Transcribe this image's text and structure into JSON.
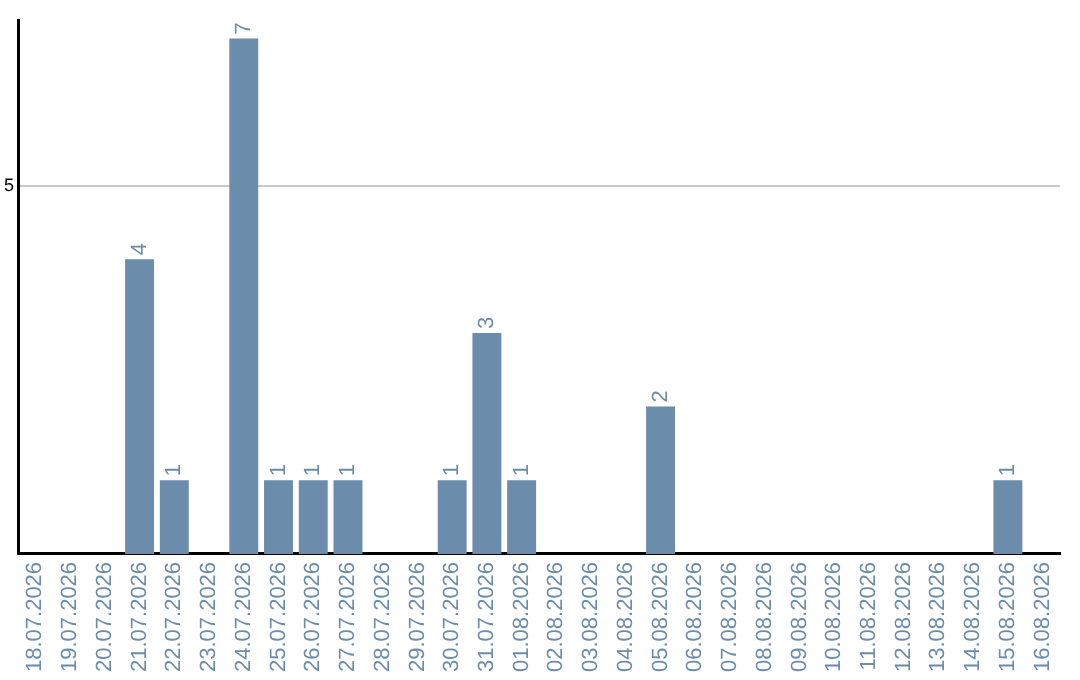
{
  "chart_data": {
    "type": "bar",
    "categories": [
      "18.07.2026",
      "19.07.2026",
      "20.07.2026",
      "21.07.2026",
      "22.07.2026",
      "23.07.2026",
      "24.07.2026",
      "25.07.2026",
      "26.07.2026",
      "27.07.2026",
      "28.07.2026",
      "29.07.2026",
      "30.07.2026",
      "31.07.2026",
      "01.08.2026",
      "02.08.2026",
      "03.08.2026",
      "04.08.2026",
      "05.08.2026",
      "06.08.2026",
      "07.08.2026",
      "08.08.2026",
      "09.08.2026",
      "10.08.2026",
      "11.08.2026",
      "12.08.2026",
      "13.08.2026",
      "14.08.2026",
      "15.08.2026",
      "16.08.2026"
    ],
    "values": [
      0,
      0,
      0,
      4,
      1,
      0,
      7,
      1,
      1,
      1,
      0,
      0,
      1,
      3,
      1,
      0,
      0,
      0,
      2,
      0,
      0,
      0,
      0,
      0,
      0,
      0,
      0,
      0,
      1,
      0
    ],
    "value_labels": [
      null,
      null,
      null,
      "4",
      "1",
      null,
      "7",
      "1",
      "1",
      "1",
      null,
      null,
      "1",
      "3",
      "1",
      null,
      null,
      null,
      "2",
      null,
      null,
      null,
      null,
      null,
      null,
      null,
      null,
      null,
      "1",
      null
    ],
    "color": "#6b8cab",
    "ylim": [
      0,
      7.25
    ],
    "yticks": [
      5
    ],
    "grid": "y",
    "legend": false
  }
}
